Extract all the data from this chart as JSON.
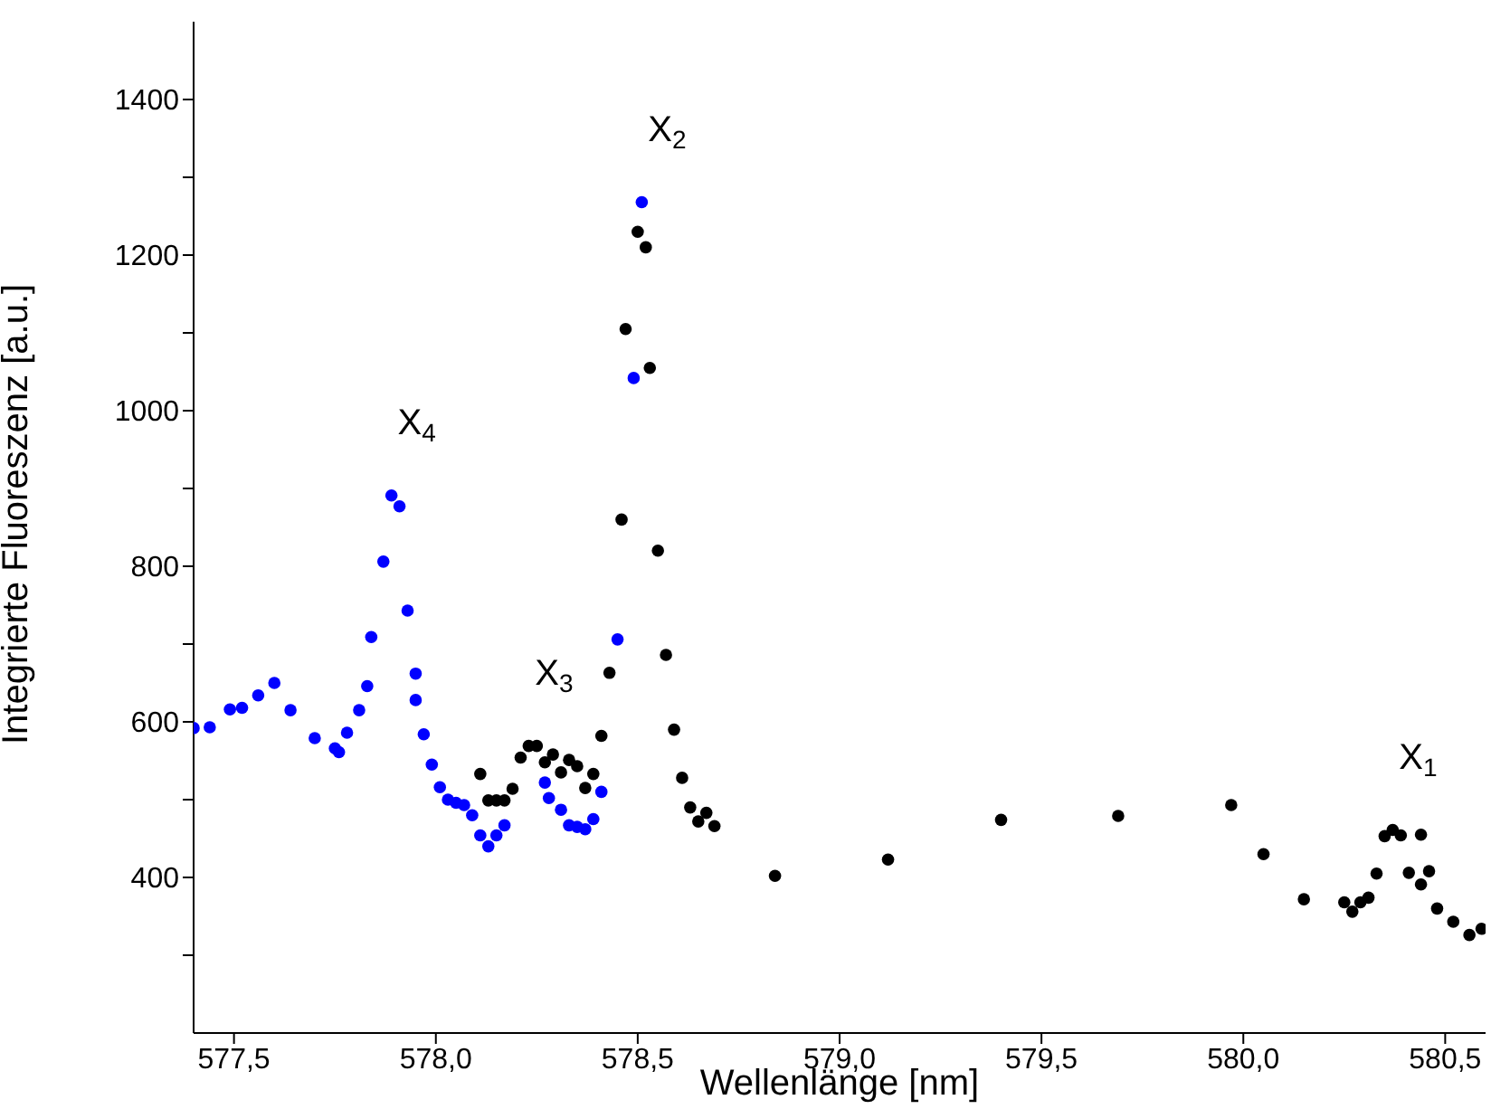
{
  "chart_data": {
    "type": "scatter",
    "xlabel": "Wellenlänge [nm]",
    "ylabel": "Integrierte Fluoreszenz [a.u.]",
    "xlim": [
      577.4,
      580.6
    ],
    "xticks": [
      {
        "value": 577.5,
        "label": "577,5"
      },
      {
        "value": 578.0,
        "label": "578,0"
      },
      {
        "value": 578.5,
        "label": "578,5"
      },
      {
        "value": 579.0,
        "label": "579,0"
      },
      {
        "value": 579.5,
        "label": "579,5"
      },
      {
        "value": 580.0,
        "label": "580,0"
      },
      {
        "value": 580.5,
        "label": "580,5"
      }
    ],
    "ylim": [
      200,
      1500
    ],
    "yticks": [
      {
        "value": 300,
        "label": null
      },
      400,
      {
        "value": 500,
        "label": null
      },
      600,
      {
        "value": 700,
        "label": null
      },
      800,
      {
        "value": 900,
        "label": null
      },
      1000,
      {
        "value": 1100,
        "label": null
      },
      1200,
      {
        "value": 1300,
        "label": null
      },
      1400
    ],
    "marker": "circle",
    "series": [
      {
        "color": "#000000",
        "x": [
          578.11,
          578.13,
          578.15,
          578.17,
          578.19,
          578.21,
          578.23,
          578.25,
          578.27,
          578.29,
          578.31,
          578.33,
          578.35,
          578.37,
          578.39,
          578.41,
          578.43,
          578.46,
          578.47,
          578.5,
          578.52,
          578.53,
          578.55,
          578.57,
          578.59,
          578.61,
          578.63,
          578.65,
          578.67,
          578.69,
          578.84,
          579.12,
          579.4,
          579.69,
          579.97,
          580.05,
          580.15,
          580.25,
          580.27,
          580.29,
          580.31,
          580.33,
          580.35,
          580.37,
          580.39,
          580.41,
          580.44,
          580.44,
          580.46,
          580.48,
          580.52,
          580.56,
          580.59
        ],
        "values": [
          533,
          499,
          499,
          499,
          514,
          554,
          569,
          569,
          548,
          558,
          535,
          551,
          543,
          515,
          533,
          582,
          663,
          860,
          1105,
          1230,
          1210,
          1055,
          820,
          686,
          590,
          528,
          490,
          472,
          483,
          466,
          402,
          423,
          474,
          479,
          493,
          430,
          372,
          368,
          356,
          368,
          374,
          405,
          453,
          461,
          454,
          406,
          455,
          391,
          408,
          360,
          343,
          326,
          334
        ]
      },
      {
        "color": "#0000ff",
        "x": [
          577.4,
          577.44,
          577.49,
          577.52,
          577.56,
          577.6,
          577.64,
          577.7,
          577.75,
          577.76,
          577.78,
          577.81,
          577.83,
          577.84,
          577.87,
          577.89,
          577.91,
          577.93,
          577.95,
          577.95,
          577.97,
          577.99,
          578.01,
          578.03,
          578.05,
          578.07,
          578.09,
          578.11,
          578.13,
          578.15,
          578.17,
          578.27,
          578.28,
          578.31,
          578.33,
          578.35,
          578.37,
          578.39,
          578.41,
          578.45,
          578.49,
          578.51
        ],
        "values": [
          592,
          593,
          616,
          618,
          634,
          650,
          615,
          579,
          566,
          561,
          586,
          615,
          646,
          709,
          806,
          891,
          877,
          743,
          662,
          628,
          584,
          545,
          516,
          500,
          496,
          493,
          480,
          454,
          440,
          454,
          467,
          522,
          502,
          487,
          467,
          465,
          462,
          475,
          510,
          706,
          1042,
          1268
        ]
      }
    ],
    "annotations": [
      {
        "text": "X$_{4}$",
        "x": 577.89,
        "y": 891
      },
      {
        "text": "X$_{3}$",
        "x": 578.23,
        "y": 569
      },
      {
        "text": "X$_{2}$",
        "x": 578.51,
        "y": 1268
      },
      {
        "text": "X$_{1}$",
        "x": 580.37,
        "y": 461
      }
    ]
  }
}
